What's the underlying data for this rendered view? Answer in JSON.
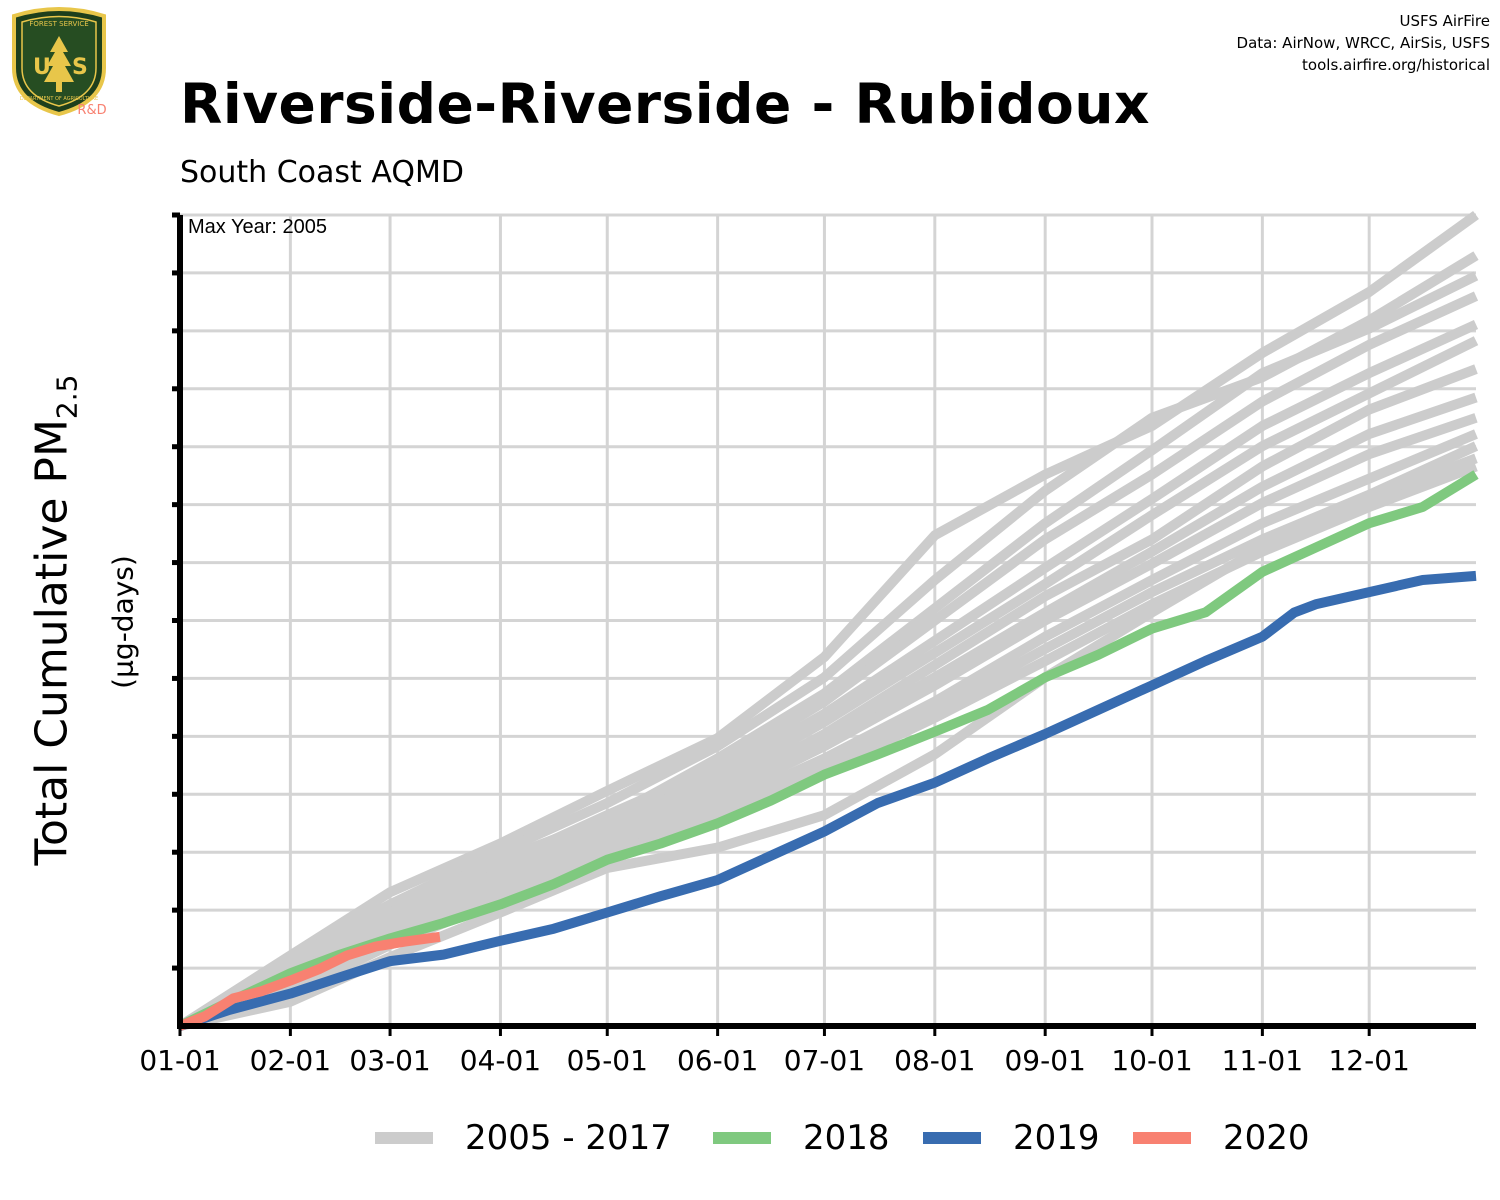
{
  "header": {
    "title": "Riverside-Riverside - Rubidoux",
    "subtitle": "South Coast AQMD",
    "credits": [
      "USFS AirFire",
      "Data: AirNow, WRCC, AirSis, USFS",
      "tools.airfire.org/historical"
    ],
    "logo_text": {
      "top": "FOREST SERVICE",
      "letters": "USFS",
      "bottom": "DEPARTMENT OF AGRICULTURE",
      "tag": "R&D"
    }
  },
  "chart_data": {
    "type": "line",
    "title": "Riverside-Riverside - Rubidoux",
    "subtitle": "South Coast AQMD",
    "ylabel_main": "Total Cumulative PM",
    "ylabel_sub": "2.5",
    "ylabel_unit": "(µg-days)",
    "annotation": "Max Year: 2005",
    "x_tick_labels": [
      "01-01",
      "02-01",
      "03-01",
      "04-01",
      "05-01",
      "06-01",
      "07-01",
      "08-01",
      "09-01",
      "10-01",
      "11-01",
      "12-01"
    ],
    "x_tick_days": [
      1,
      32,
      60,
      91,
      121,
      152,
      182,
      213,
      244,
      274,
      305,
      335
    ],
    "xlim_days": [
      1,
      365
    ],
    "ylim_fraction_of_max": [
      0,
      1
    ],
    "y_gridline_count": 14,
    "y_tick_labels_shown": false,
    "grid": true,
    "legend": {
      "position": "bottom",
      "entries": [
        {
          "label": "2005 - 2017",
          "color": "#cccccc"
        },
        {
          "label": "2018",
          "color": "#7fc97f"
        },
        {
          "label": "2019",
          "color": "#386cb0"
        },
        {
          "label": "2020",
          "color": "#f88171"
        }
      ]
    },
    "series": [
      {
        "group": "2005 - 2017",
        "color": "#cccccc",
        "x": [
          1,
          32,
          60,
          91,
          121,
          152,
          182,
          213,
          244,
          274,
          305,
          335,
          365
        ],
        "y": [
          0,
          0.087,
          0.165,
          0.225,
          0.29,
          0.355,
          0.455,
          0.605,
          0.68,
          0.74,
          0.83,
          0.905,
          1.0
        ]
      },
      {
        "group": "2005 - 2017",
        "color": "#cccccc",
        "x": [
          1,
          32,
          60,
          91,
          121,
          152,
          182,
          213,
          244,
          274,
          305,
          335,
          365
        ],
        "y": [
          0,
          0.082,
          0.15,
          0.215,
          0.275,
          0.345,
          0.43,
          0.55,
          0.66,
          0.75,
          0.8,
          0.87,
          0.95
        ]
      },
      {
        "group": "2005 - 2017",
        "color": "#cccccc",
        "x": [
          1,
          32,
          60,
          91,
          121,
          152,
          182,
          213,
          244,
          274,
          305,
          335,
          365
        ],
        "y": [
          0,
          0.075,
          0.145,
          0.205,
          0.255,
          0.33,
          0.41,
          0.515,
          0.62,
          0.71,
          0.805,
          0.86,
          0.925
        ]
      },
      {
        "group": "2005 - 2017",
        "color": "#cccccc",
        "x": [
          1,
          32,
          60,
          91,
          121,
          152,
          182,
          213,
          244,
          274,
          305,
          335,
          365
        ],
        "y": [
          0,
          0.07,
          0.14,
          0.2,
          0.26,
          0.32,
          0.4,
          0.5,
          0.6,
          0.68,
          0.77,
          0.84,
          0.9
        ]
      },
      {
        "group": "2005 - 2017",
        "color": "#cccccc",
        "x": [
          1,
          32,
          60,
          91,
          121,
          152,
          182,
          213,
          244,
          274,
          305,
          335,
          365
        ],
        "y": [
          0,
          0.066,
          0.132,
          0.19,
          0.245,
          0.31,
          0.385,
          0.475,
          0.565,
          0.65,
          0.74,
          0.805,
          0.865
        ]
      },
      {
        "group": "2005 - 2017",
        "color": "#cccccc",
        "x": [
          1,
          32,
          60,
          91,
          121,
          152,
          182,
          213,
          244,
          274,
          305,
          335,
          365
        ],
        "y": [
          0,
          0.064,
          0.128,
          0.185,
          0.24,
          0.3,
          0.375,
          0.46,
          0.545,
          0.63,
          0.715,
          0.78,
          0.845
        ]
      },
      {
        "group": "2005 - 2017",
        "color": "#cccccc",
        "x": [
          1,
          32,
          60,
          91,
          121,
          152,
          182,
          213,
          244,
          274,
          305,
          335,
          365
        ],
        "y": [
          0,
          0.06,
          0.125,
          0.18,
          0.235,
          0.29,
          0.36,
          0.445,
          0.53,
          0.6,
          0.69,
          0.76,
          0.81
        ]
      },
      {
        "group": "2005 - 2017",
        "color": "#cccccc",
        "x": [
          1,
          32,
          60,
          91,
          121,
          152,
          182,
          213,
          244,
          274,
          305,
          335,
          365
        ],
        "y": [
          0,
          0.058,
          0.12,
          0.175,
          0.23,
          0.285,
          0.35,
          0.43,
          0.51,
          0.585,
          0.665,
          0.73,
          0.775
        ]
      },
      {
        "group": "2005 - 2017",
        "color": "#cccccc",
        "x": [
          1,
          32,
          60,
          91,
          121,
          152,
          182,
          213,
          244,
          274,
          305,
          335,
          365
        ],
        "y": [
          0,
          0.055,
          0.115,
          0.17,
          0.225,
          0.28,
          0.345,
          0.42,
          0.5,
          0.57,
          0.645,
          0.705,
          0.75
        ]
      },
      {
        "group": "2005 - 2017",
        "color": "#cccccc",
        "x": [
          1,
          32,
          60,
          91,
          121,
          152,
          182,
          213,
          244,
          274,
          305,
          335,
          365
        ],
        "y": [
          0,
          0.05,
          0.11,
          0.165,
          0.215,
          0.27,
          0.33,
          0.4,
          0.48,
          0.55,
          0.62,
          0.675,
          0.73
        ]
      },
      {
        "group": "2005 - 2017",
        "color": "#cccccc",
        "x": [
          1,
          32,
          60,
          91,
          121,
          152,
          182,
          213,
          244,
          274,
          305,
          335,
          365
        ],
        "y": [
          0,
          0.045,
          0.105,
          0.16,
          0.21,
          0.262,
          0.32,
          0.39,
          0.465,
          0.535,
          0.6,
          0.655,
          0.715
        ]
      },
      {
        "group": "2005 - 2017",
        "color": "#cccccc",
        "x": [
          1,
          32,
          60,
          91,
          121,
          152,
          182,
          213,
          244,
          274,
          305,
          335,
          365
        ],
        "y": [
          0,
          0.03,
          0.085,
          0.14,
          0.195,
          0.22,
          0.26,
          0.335,
          0.43,
          0.51,
          0.59,
          0.65,
          0.7
        ]
      },
      {
        "group": "2005 - 2017",
        "color": "#cccccc",
        "x": [
          1,
          32,
          60,
          91,
          121,
          152,
          182,
          213,
          244,
          274,
          305,
          335,
          365
        ],
        "y": [
          0,
          0.04,
          0.1,
          0.155,
          0.205,
          0.255,
          0.315,
          0.38,
          0.45,
          0.52,
          0.585,
          0.64,
          0.69
        ]
      },
      {
        "group": "2018",
        "color": "#7fc97f",
        "x": [
          1,
          15,
          32,
          46,
          60,
          75,
          91,
          106,
          121,
          136,
          152,
          167,
          182,
          197,
          213,
          228,
          244,
          259,
          274,
          289,
          305,
          320,
          335,
          350,
          365
        ],
        "y": [
          0,
          0.03,
          0.065,
          0.088,
          0.108,
          0.127,
          0.15,
          0.175,
          0.205,
          0.225,
          0.25,
          0.278,
          0.31,
          0.335,
          0.363,
          0.39,
          0.43,
          0.458,
          0.49,
          0.51,
          0.56,
          0.59,
          0.62,
          0.64,
          0.68
        ]
      },
      {
        "group": "2019",
        "color": "#386cb0",
        "x": [
          1,
          15,
          32,
          46,
          60,
          75,
          91,
          106,
          121,
          136,
          152,
          167,
          182,
          197,
          213,
          228,
          244,
          259,
          274,
          289,
          305,
          314,
          320,
          335,
          350,
          365
        ],
        "y": [
          0,
          0.02,
          0.04,
          0.06,
          0.08,
          0.088,
          0.105,
          0.12,
          0.14,
          0.16,
          0.18,
          0.21,
          0.24,
          0.275,
          0.3,
          0.33,
          0.36,
          0.39,
          0.42,
          0.45,
          0.48,
          0.51,
          0.52,
          0.535,
          0.55,
          0.555
        ]
      },
      {
        "group": "2020",
        "color": "#f88171",
        "x": [
          1,
          8,
          16,
          24,
          32,
          40,
          48,
          56,
          64,
          74
        ],
        "y": [
          0,
          0.012,
          0.034,
          0.043,
          0.056,
          0.07,
          0.087,
          0.098,
          0.104,
          0.11
        ]
      }
    ]
  }
}
